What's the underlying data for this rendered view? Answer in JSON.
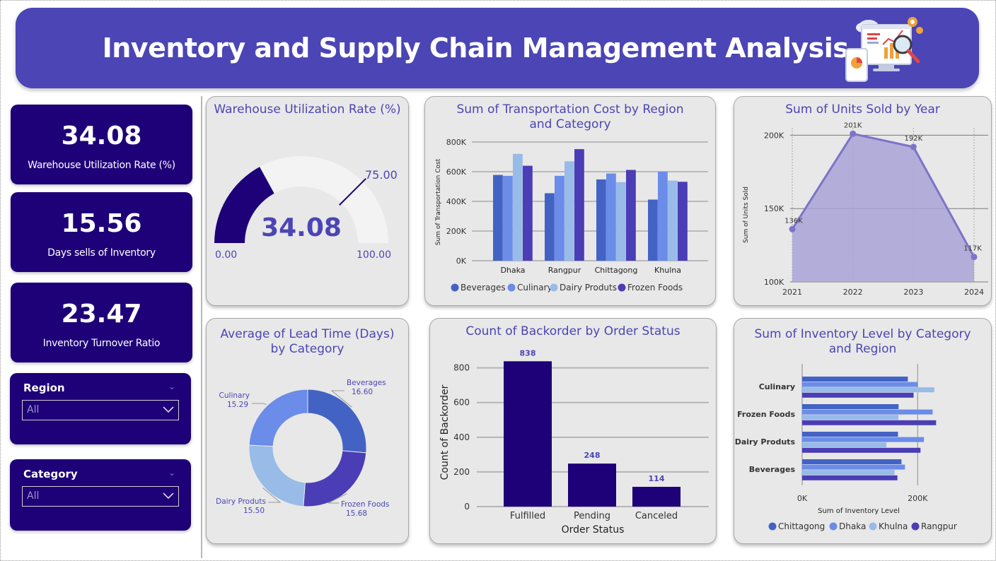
{
  "header": {
    "title": "Inventory and Supply Chain Management Analysis",
    "icon": "analytics-dashboard-icon"
  },
  "kpis": [
    {
      "value": "34.08",
      "label": "Warehouse Utilization Rate (%)"
    },
    {
      "value": "15.56",
      "label": "Days sells of Inventory"
    },
    {
      "value": "23.47",
      "label": "Inventory Turnover Ratio"
    }
  ],
  "slicers": [
    {
      "title": "Region",
      "value": "All"
    },
    {
      "title": "Category",
      "value": "All"
    }
  ],
  "colors": {
    "primary": "#1e0078",
    "accent": "#4b45b5",
    "series": [
      "#4363c4",
      "#6b8ce8",
      "#98bbe8",
      "#4b3db5"
    ],
    "card_bg": "#e8e8e8"
  },
  "gauge": {
    "title": "Warehouse Utilization Rate (%)",
    "value": 34.08,
    "value_label": "34.08",
    "min": 0,
    "max": 100,
    "min_label": "0.00",
    "max_label": "100.00",
    "target": 75,
    "target_label": "75.00"
  },
  "chart_data": [
    {
      "id": "transport",
      "type": "bar",
      "title": "Sum of Transportation Cost by Region and Category",
      "xlabel": "",
      "ylabel": "Sum of Transportation Cost",
      "categories": [
        "Dhaka",
        "Rangpur",
        "Chittagong",
        "Khulna"
      ],
      "ylim": [
        0,
        800000
      ],
      "yticks": [
        0,
        200000,
        400000,
        600000,
        800000
      ],
      "ytick_labels": [
        "0K",
        "200K",
        "400K",
        "600K",
        "800K"
      ],
      "legend": "bottom",
      "series": [
        {
          "name": "Beverages",
          "values": [
            578000,
            455000,
            548000,
            412000
          ]
        },
        {
          "name": "Culinary",
          "values": [
            572000,
            572000,
            588000,
            600000
          ]
        },
        {
          "name": "Dairy Produts",
          "values": [
            720000,
            670000,
            530000,
            540000
          ]
        },
        {
          "name": "Frozen Foods",
          "values": [
            640000,
            752000,
            612000,
            532000
          ]
        }
      ]
    },
    {
      "id": "units",
      "type": "area",
      "title": "Sum of Units Sold by Year",
      "xlabel": "",
      "ylabel": "Sum of Units Sold",
      "x": [
        "2021",
        "2022",
        "2023",
        "2024"
      ],
      "values": [
        136000,
        201000,
        192000,
        117000
      ],
      "labels": [
        "136K",
        "201K",
        "192K",
        "117K"
      ],
      "ylim": [
        100000,
        205000
      ],
      "yticks": [
        100000,
        150000,
        200000
      ],
      "ytick_labels": [
        "100K",
        "150K",
        "200K"
      ]
    },
    {
      "id": "leadtime",
      "type": "pie",
      "title": "Average of Lead Time (Days) by Category",
      "slices": [
        {
          "name": "Beverages",
          "value": 16.6,
          "label": "16.60"
        },
        {
          "name": "Frozen Foods",
          "value": 15.68,
          "label": "15.68"
        },
        {
          "name": "Dairy Produts",
          "value": 15.5,
          "label": "15.50"
        },
        {
          "name": "Culinary",
          "value": 15.29,
          "label": "15.29"
        }
      ]
    },
    {
      "id": "backorder",
      "type": "bar",
      "title": "Count of Backorder by Order Status",
      "xlabel": "Order Status",
      "ylabel": "Count of Backorder",
      "categories": [
        "Fulfilled",
        "Pending",
        "Canceled"
      ],
      "values": [
        838,
        248,
        114
      ],
      "ylim": [
        0,
        880
      ],
      "yticks": [
        0,
        200,
        400,
        600,
        800
      ],
      "ytick_labels": [
        "0",
        "200",
        "400",
        "600",
        "800"
      ]
    },
    {
      "id": "inventory",
      "type": "bar",
      "orientation": "horizontal",
      "title": "Sum of Inventory Level by Category and Region",
      "xlabel": "Sum of Inventory Level",
      "ylabel": "",
      "categories": [
        "Culinary",
        "Frozen Foods",
        "Dairy Produts",
        "Beverages"
      ],
      "xlim": [
        0,
        250000
      ],
      "xticks": [
        0,
        200000
      ],
      "xtick_labels": [
        "0K",
        "200K"
      ],
      "legend": "bottom",
      "series": [
        {
          "name": "Chittagong",
          "values": [
            183000,
            167000,
            166000,
            172000
          ]
        },
        {
          "name": "Dhaka",
          "values": [
            200000,
            226000,
            211000,
            178000
          ]
        },
        {
          "name": "Khulna",
          "values": [
            229000,
            167000,
            146000,
            160000
          ]
        },
        {
          "name": "Rangpur",
          "values": [
            193000,
            232000,
            205000,
            165000
          ]
        }
      ]
    }
  ]
}
